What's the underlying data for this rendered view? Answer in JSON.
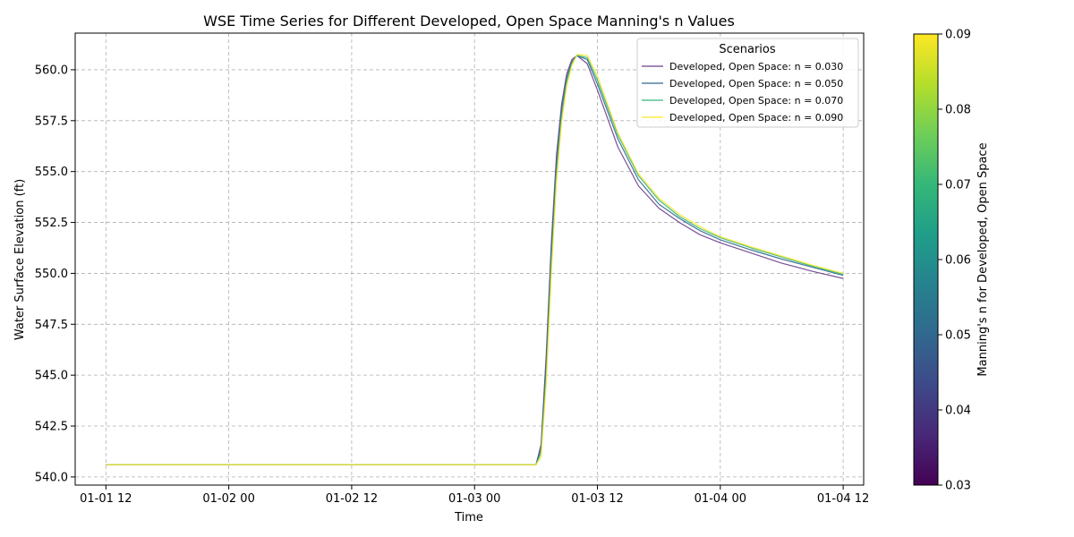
{
  "chart_data": {
    "type": "line",
    "title": "WSE Time Series for Different Developed, Open Space Manning's n Values",
    "xlabel": "Time",
    "ylabel": "Water Surface Elevation (ft)",
    "xlim": [
      "2024-01-01T09:00",
      "2024-01-04T14:00"
    ],
    "ylim": [
      539.6,
      561.8
    ],
    "x_ticks": [
      {
        "t": "2024-01-01T12:00",
        "label": "01-01 12"
      },
      {
        "t": "2024-01-02T00:00",
        "label": "01-02 00"
      },
      {
        "t": "2024-01-02T12:00",
        "label": "01-02 12"
      },
      {
        "t": "2024-01-03T00:00",
        "label": "01-03 00"
      },
      {
        "t": "2024-01-03T12:00",
        "label": "01-03 12"
      },
      {
        "t": "2024-01-04T00:00",
        "label": "01-04 00"
      },
      {
        "t": "2024-01-04T12:00",
        "label": "01-04 12"
      }
    ],
    "y_ticks": [
      540.0,
      542.5,
      545.0,
      547.5,
      550.0,
      552.5,
      555.0,
      557.5,
      560.0
    ],
    "y_tick_labels": [
      "540.0",
      "542.5",
      "545.0",
      "547.5",
      "550.0",
      "552.5",
      "555.0",
      "557.5",
      "560.0"
    ],
    "grid": true,
    "legend": {
      "title": "Scenarios",
      "placement": "top-right"
    },
    "x": [
      "2024-01-01T12:00",
      "2024-01-03T06:00",
      "2024-01-03T06:30",
      "2024-01-03T07:00",
      "2024-01-03T07:30",
      "2024-01-03T08:00",
      "2024-01-03T08:30",
      "2024-01-03T09:00",
      "2024-01-03T09:30",
      "2024-01-03T10:00",
      "2024-01-03T11:00",
      "2024-01-03T12:00",
      "2024-01-03T14:00",
      "2024-01-03T16:00",
      "2024-01-03T18:00",
      "2024-01-03T20:00",
      "2024-01-03T22:00",
      "2024-01-04T00:00",
      "2024-01-04T03:00",
      "2024-01-04T06:00",
      "2024-01-04T09:00",
      "2024-01-04T12:00"
    ],
    "series": [
      {
        "name": "Developed, Open Space: n = 0.030",
        "color": "#6a3d8a",
        "values": [
          540.6,
          540.6,
          541.6,
          546.0,
          551.5,
          555.8,
          558.3,
          559.8,
          560.5,
          560.7,
          560.3,
          559.0,
          556.2,
          554.3,
          553.2,
          552.5,
          551.9,
          551.5,
          551.0,
          550.5,
          550.1,
          549.75
        ]
      },
      {
        "name": "Developed, Open Space: n = 0.050",
        "color": "#31688e",
        "values": [
          540.6,
          540.6,
          541.4,
          545.5,
          551.0,
          555.3,
          558.0,
          559.6,
          560.4,
          560.7,
          560.5,
          559.3,
          556.6,
          554.6,
          553.4,
          552.7,
          552.1,
          551.65,
          551.15,
          550.7,
          550.3,
          549.9
        ]
      },
      {
        "name": "Developed, Open Space: n = 0.070",
        "color": "#35b779",
        "values": [
          540.6,
          540.6,
          541.2,
          545.0,
          550.5,
          554.9,
          557.7,
          559.4,
          560.3,
          560.7,
          560.6,
          559.5,
          556.8,
          554.8,
          553.6,
          552.8,
          552.2,
          551.75,
          551.25,
          550.8,
          550.35,
          549.95
        ]
      },
      {
        "name": "Developed, Open Space: n = 0.090",
        "color": "#fde725",
        "values": [
          540.6,
          540.6,
          541.0,
          544.6,
          550.0,
          554.5,
          557.4,
          559.2,
          560.2,
          560.75,
          560.7,
          559.7,
          556.9,
          554.9,
          553.7,
          552.9,
          552.3,
          551.8,
          551.3,
          550.85,
          550.4,
          550.0
        ]
      }
    ],
    "colorbar": {
      "label": "Manning's n for Developed, Open Space",
      "colormap": "viridis",
      "range": [
        0.03,
        0.09
      ],
      "ticks": [
        0.03,
        0.04,
        0.05,
        0.06,
        0.07,
        0.08,
        0.09
      ],
      "tick_labels": [
        "0.03",
        "0.04",
        "0.05",
        "0.06",
        "0.07",
        "0.08",
        "0.09"
      ],
      "stops": [
        "#440154",
        "#482878",
        "#3e4989",
        "#31688e",
        "#26828e",
        "#1f9e89",
        "#35b779",
        "#6ece58",
        "#b5de2b",
        "#fde725"
      ]
    }
  }
}
